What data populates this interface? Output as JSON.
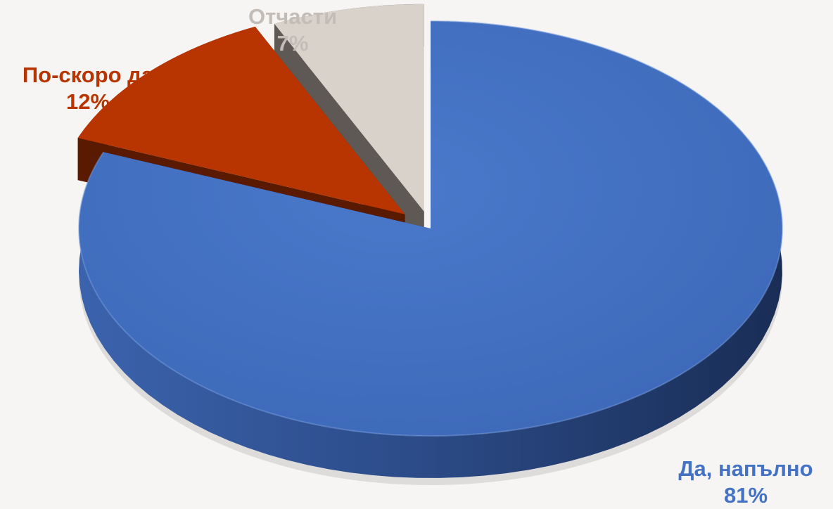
{
  "chart_data": {
    "type": "pie",
    "title": "",
    "style": "3d-exploded",
    "slices": [
      {
        "category": "Да, напълно",
        "value": 81,
        "percent_label": "81%",
        "color": "#4472c4",
        "label_color": "#4472c4"
      },
      {
        "category": "По-скоро да",
        "value": 12,
        "percent_label": "12%",
        "color": "#b83502",
        "label_color": "#b83502"
      },
      {
        "category": "Отчасти",
        "value": 7,
        "percent_label": "7%",
        "color": "#d9d2cb",
        "label_color": "#c4bdb7"
      }
    ]
  },
  "background_color": "#f6f5f3"
}
